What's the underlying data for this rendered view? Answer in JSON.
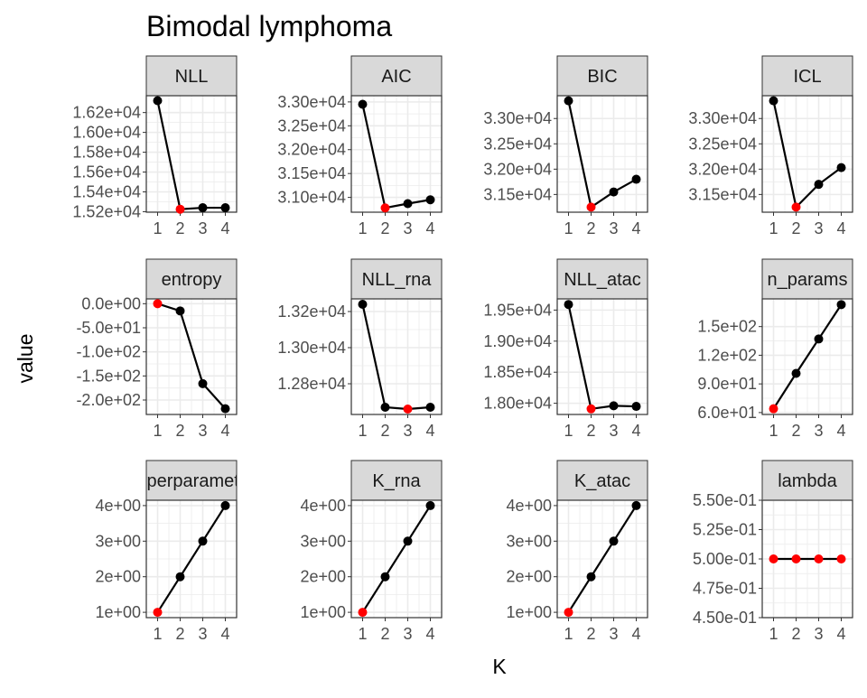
{
  "title": "Bimodal lymphoma",
  "xlabel": "K",
  "ylabel": "value",
  "colors": {
    "default_point": "#000000",
    "highlight_point": "#ff0000",
    "line": "#000000",
    "strip_fill": "#d9d9d9",
    "grid": "#ebebeb",
    "panel_border": "#333333"
  },
  "chart_data": {
    "type": "line",
    "title": "Bimodal lymphoma",
    "xlabel": "K",
    "ylabel": "value",
    "x_ticks": [
      "1",
      "2",
      "3",
      "4"
    ],
    "facets": [
      {
        "label": "NLL",
        "x": [
          1,
          2,
          3,
          4
        ],
        "values": [
          16320,
          15225,
          15240,
          15240
        ],
        "highlight": 2,
        "ylim": [
          15195,
          16370
        ],
        "yticks": [
          15200,
          15400,
          15600,
          15800,
          16000,
          16200
        ],
        "ytick_labels": [
          "1.52e+04",
          "1.54e+04",
          "1.56e+04",
          "1.58e+04",
          "1.60e+04",
          "1.62e+04"
        ]
      },
      {
        "label": "AIC",
        "x": [
          1,
          2,
          3,
          4
        ],
        "values": [
          32950,
          30780,
          30870,
          30950
        ],
        "highlight": 2,
        "ylim": [
          30690,
          33130
        ],
        "yticks": [
          31000,
          31500,
          32000,
          32500,
          33000
        ],
        "ytick_labels": [
          "3.10e+04",
          "3.15e+04",
          "3.20e+04",
          "3.25e+04",
          "3.30e+04"
        ]
      },
      {
        "label": "BIC",
        "x": [
          1,
          2,
          3,
          4
        ],
        "values": [
          33350,
          31250,
          31550,
          31800
        ],
        "highlight": 2,
        "ylim": [
          31150,
          33450
        ],
        "yticks": [
          31500,
          32000,
          32500,
          33000
        ],
        "ytick_labels": [
          "3.15e+04",
          "3.20e+04",
          "3.25e+04",
          "3.30e+04"
        ]
      },
      {
        "label": "ICL",
        "x": [
          1,
          2,
          3,
          4
        ],
        "values": [
          33350,
          31250,
          31700,
          32030
        ],
        "highlight": 2,
        "ylim": [
          31150,
          33450
        ],
        "yticks": [
          31500,
          32000,
          32500,
          33000
        ],
        "ytick_labels": [
          "3.15e+04",
          "3.20e+04",
          "3.25e+04",
          "3.30e+04"
        ]
      },
      {
        "label": "entropy",
        "x": [
          1,
          2,
          3,
          4
        ],
        "values": [
          0,
          -15,
          -166,
          -218
        ],
        "highlight": 1,
        "ylim": [
          -230,
          10
        ],
        "yticks": [
          -200,
          -150,
          -100,
          -50,
          0
        ],
        "ytick_labels": [
          "-2.0e+02",
          "-1.5e+02",
          "-1.0e+02",
          "-5.0e+01",
          "0.0e+00"
        ]
      },
      {
        "label": "NLL_rna",
        "x": [
          1,
          2,
          3,
          4
        ],
        "values": [
          13240,
          12670,
          12660,
          12670
        ],
        "highlight": 3,
        "ylim": [
          12630,
          13270
        ],
        "yticks": [
          12800,
          13000,
          13200
        ],
        "ytick_labels": [
          "1.28e+04",
          "1.30e+04",
          "1.32e+04"
        ]
      },
      {
        "label": "NLL_atac",
        "x": [
          1,
          2,
          3,
          4
        ],
        "values": [
          19590,
          17910,
          17960,
          17950
        ],
        "highlight": 2,
        "ylim": [
          17820,
          19680
        ],
        "yticks": [
          18000,
          18500,
          19000,
          19500
        ],
        "ytick_labels": [
          "1.80e+04",
          "1.85e+04",
          "1.90e+04",
          "1.95e+04"
        ]
      },
      {
        "label": "n_params",
        "x": [
          1,
          2,
          3,
          4
        ],
        "values": [
          64,
          101,
          137,
          173
        ],
        "highlight": 1,
        "ylim": [
          58,
          179
        ],
        "yticks": [
          60,
          90,
          120,
          150
        ],
        "ytick_labels": [
          "6.0e+01",
          "9.0e+01",
          "1.2e+02",
          "1.5e+02"
        ]
      },
      {
        "label": "hyperparameter",
        "x": [
          1,
          2,
          3,
          4
        ],
        "values": [
          1,
          2,
          3,
          4
        ],
        "highlight": 1,
        "ylim": [
          0.85,
          4.15
        ],
        "yticks": [
          1,
          2,
          3,
          4
        ],
        "ytick_labels": [
          "1e+00",
          "2e+00",
          "3e+00",
          "4e+00"
        ]
      },
      {
        "label": "K_rna",
        "x": [
          1,
          2,
          3,
          4
        ],
        "values": [
          1,
          2,
          3,
          4
        ],
        "highlight": 1,
        "ylim": [
          0.85,
          4.15
        ],
        "yticks": [
          1,
          2,
          3,
          4
        ],
        "ytick_labels": [
          "1e+00",
          "2e+00",
          "3e+00",
          "4e+00"
        ]
      },
      {
        "label": "K_atac",
        "x": [
          1,
          2,
          3,
          4
        ],
        "values": [
          1,
          2,
          3,
          4
        ],
        "highlight": 1,
        "ylim": [
          0.85,
          4.15
        ],
        "yticks": [
          1,
          2,
          3,
          4
        ],
        "ytick_labels": [
          "1e+00",
          "2e+00",
          "3e+00",
          "4e+00"
        ]
      },
      {
        "label": "lambda",
        "x": [
          1,
          2,
          3,
          4
        ],
        "values": [
          0.5,
          0.5,
          0.5,
          0.5
        ],
        "highlight": 1,
        "highlight_all": true,
        "ylim": [
          0.45,
          0.55
        ],
        "yticks": [
          0.45,
          0.475,
          0.5,
          0.525,
          0.55
        ],
        "ytick_labels": [
          "4.50e-01",
          "4.75e-01",
          "5.00e-01",
          "5.25e-01",
          "5.50e-01"
        ]
      }
    ]
  }
}
